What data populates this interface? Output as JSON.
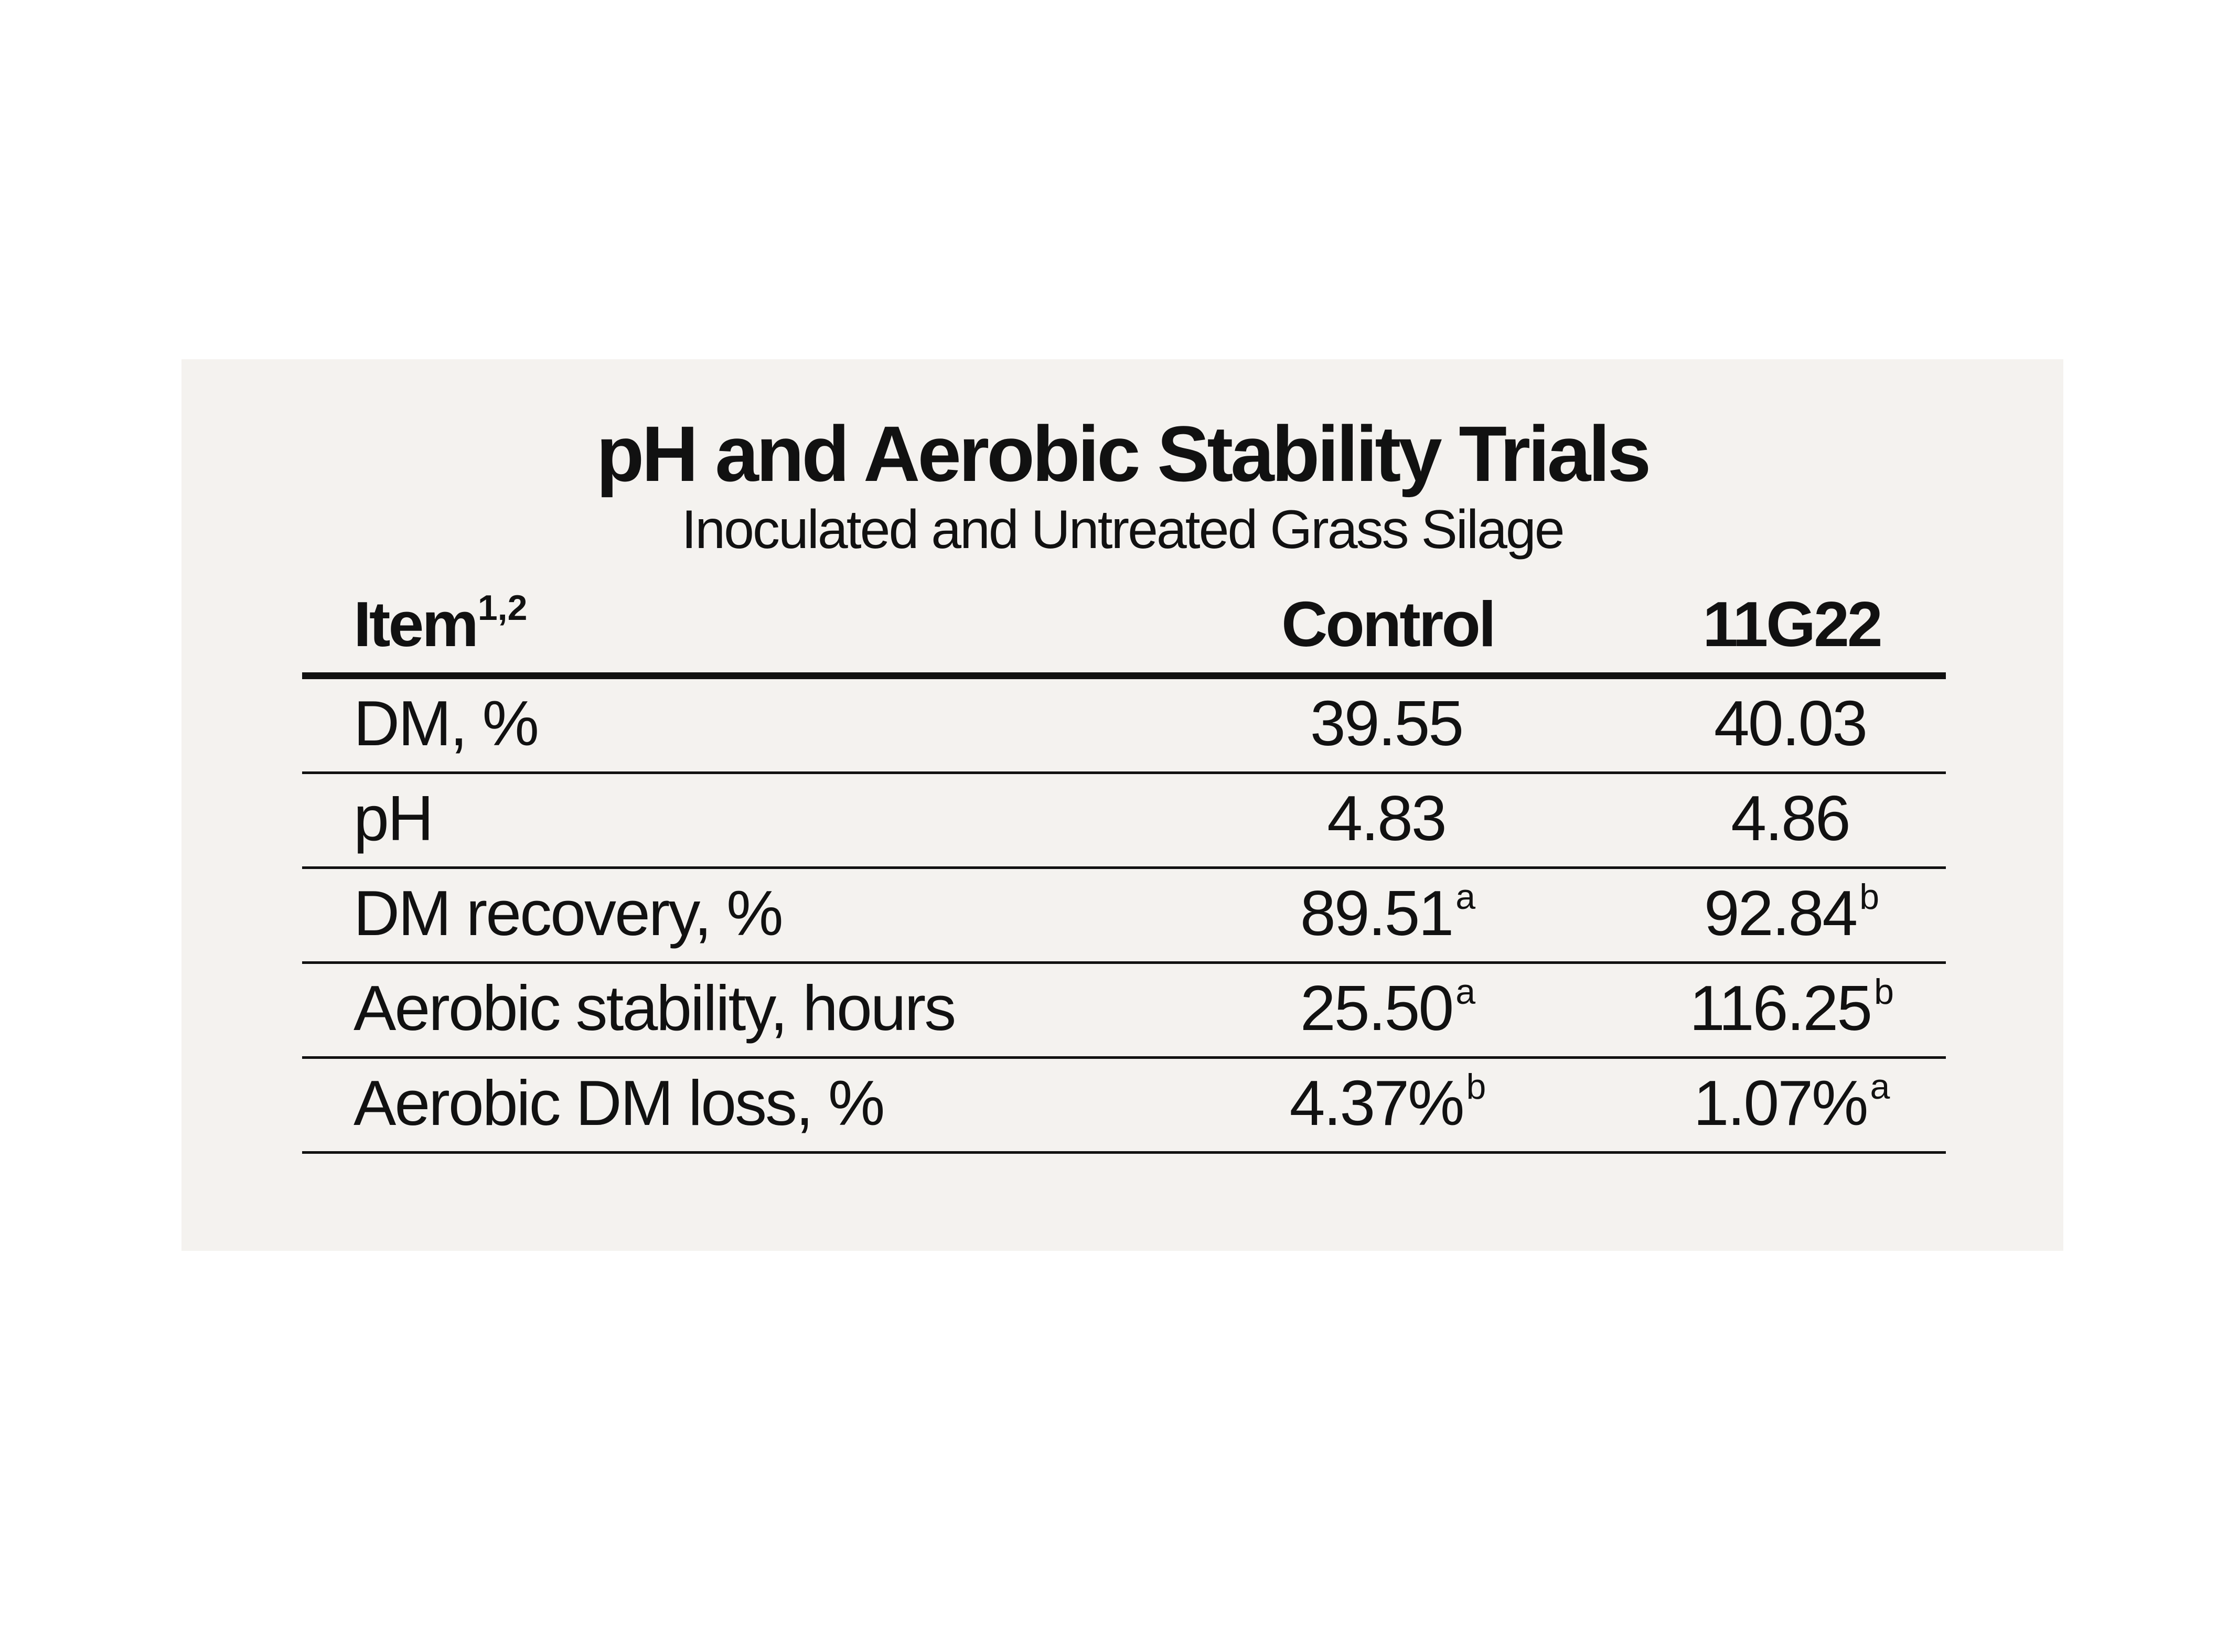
{
  "title": "pH and Aerobic Stability Trials",
  "subtitle": "Inoculated and Untreated Grass Silage",
  "table": {
    "headers": {
      "item": "Item",
      "item_sup": "1,2",
      "control": "Control",
      "treatment": "11G22"
    },
    "rows": [
      {
        "item": "DM, %",
        "control": "39.55",
        "control_sup": "",
        "treatment": "40.03",
        "treatment_sup": ""
      },
      {
        "item": "pH",
        "control": "4.83",
        "control_sup": "",
        "treatment": "4.86",
        "treatment_sup": ""
      },
      {
        "item": "DM recovery, %",
        "control": "89.51",
        "control_sup": "a",
        "treatment": "92.84",
        "treatment_sup": "b"
      },
      {
        "item": "Aerobic stability, hours",
        "control": "25.50",
        "control_sup": "a",
        "treatment": "116.25",
        "treatment_sup": "b"
      },
      {
        "item": "Aerobic DM loss, %",
        "control": "4.37%",
        "control_sup": "b",
        "treatment": "1.07%",
        "treatment_sup": "a"
      }
    ]
  },
  "colors": {
    "panel_background": "#f4f2ef",
    "text": "#111111",
    "rules": "#111111"
  }
}
